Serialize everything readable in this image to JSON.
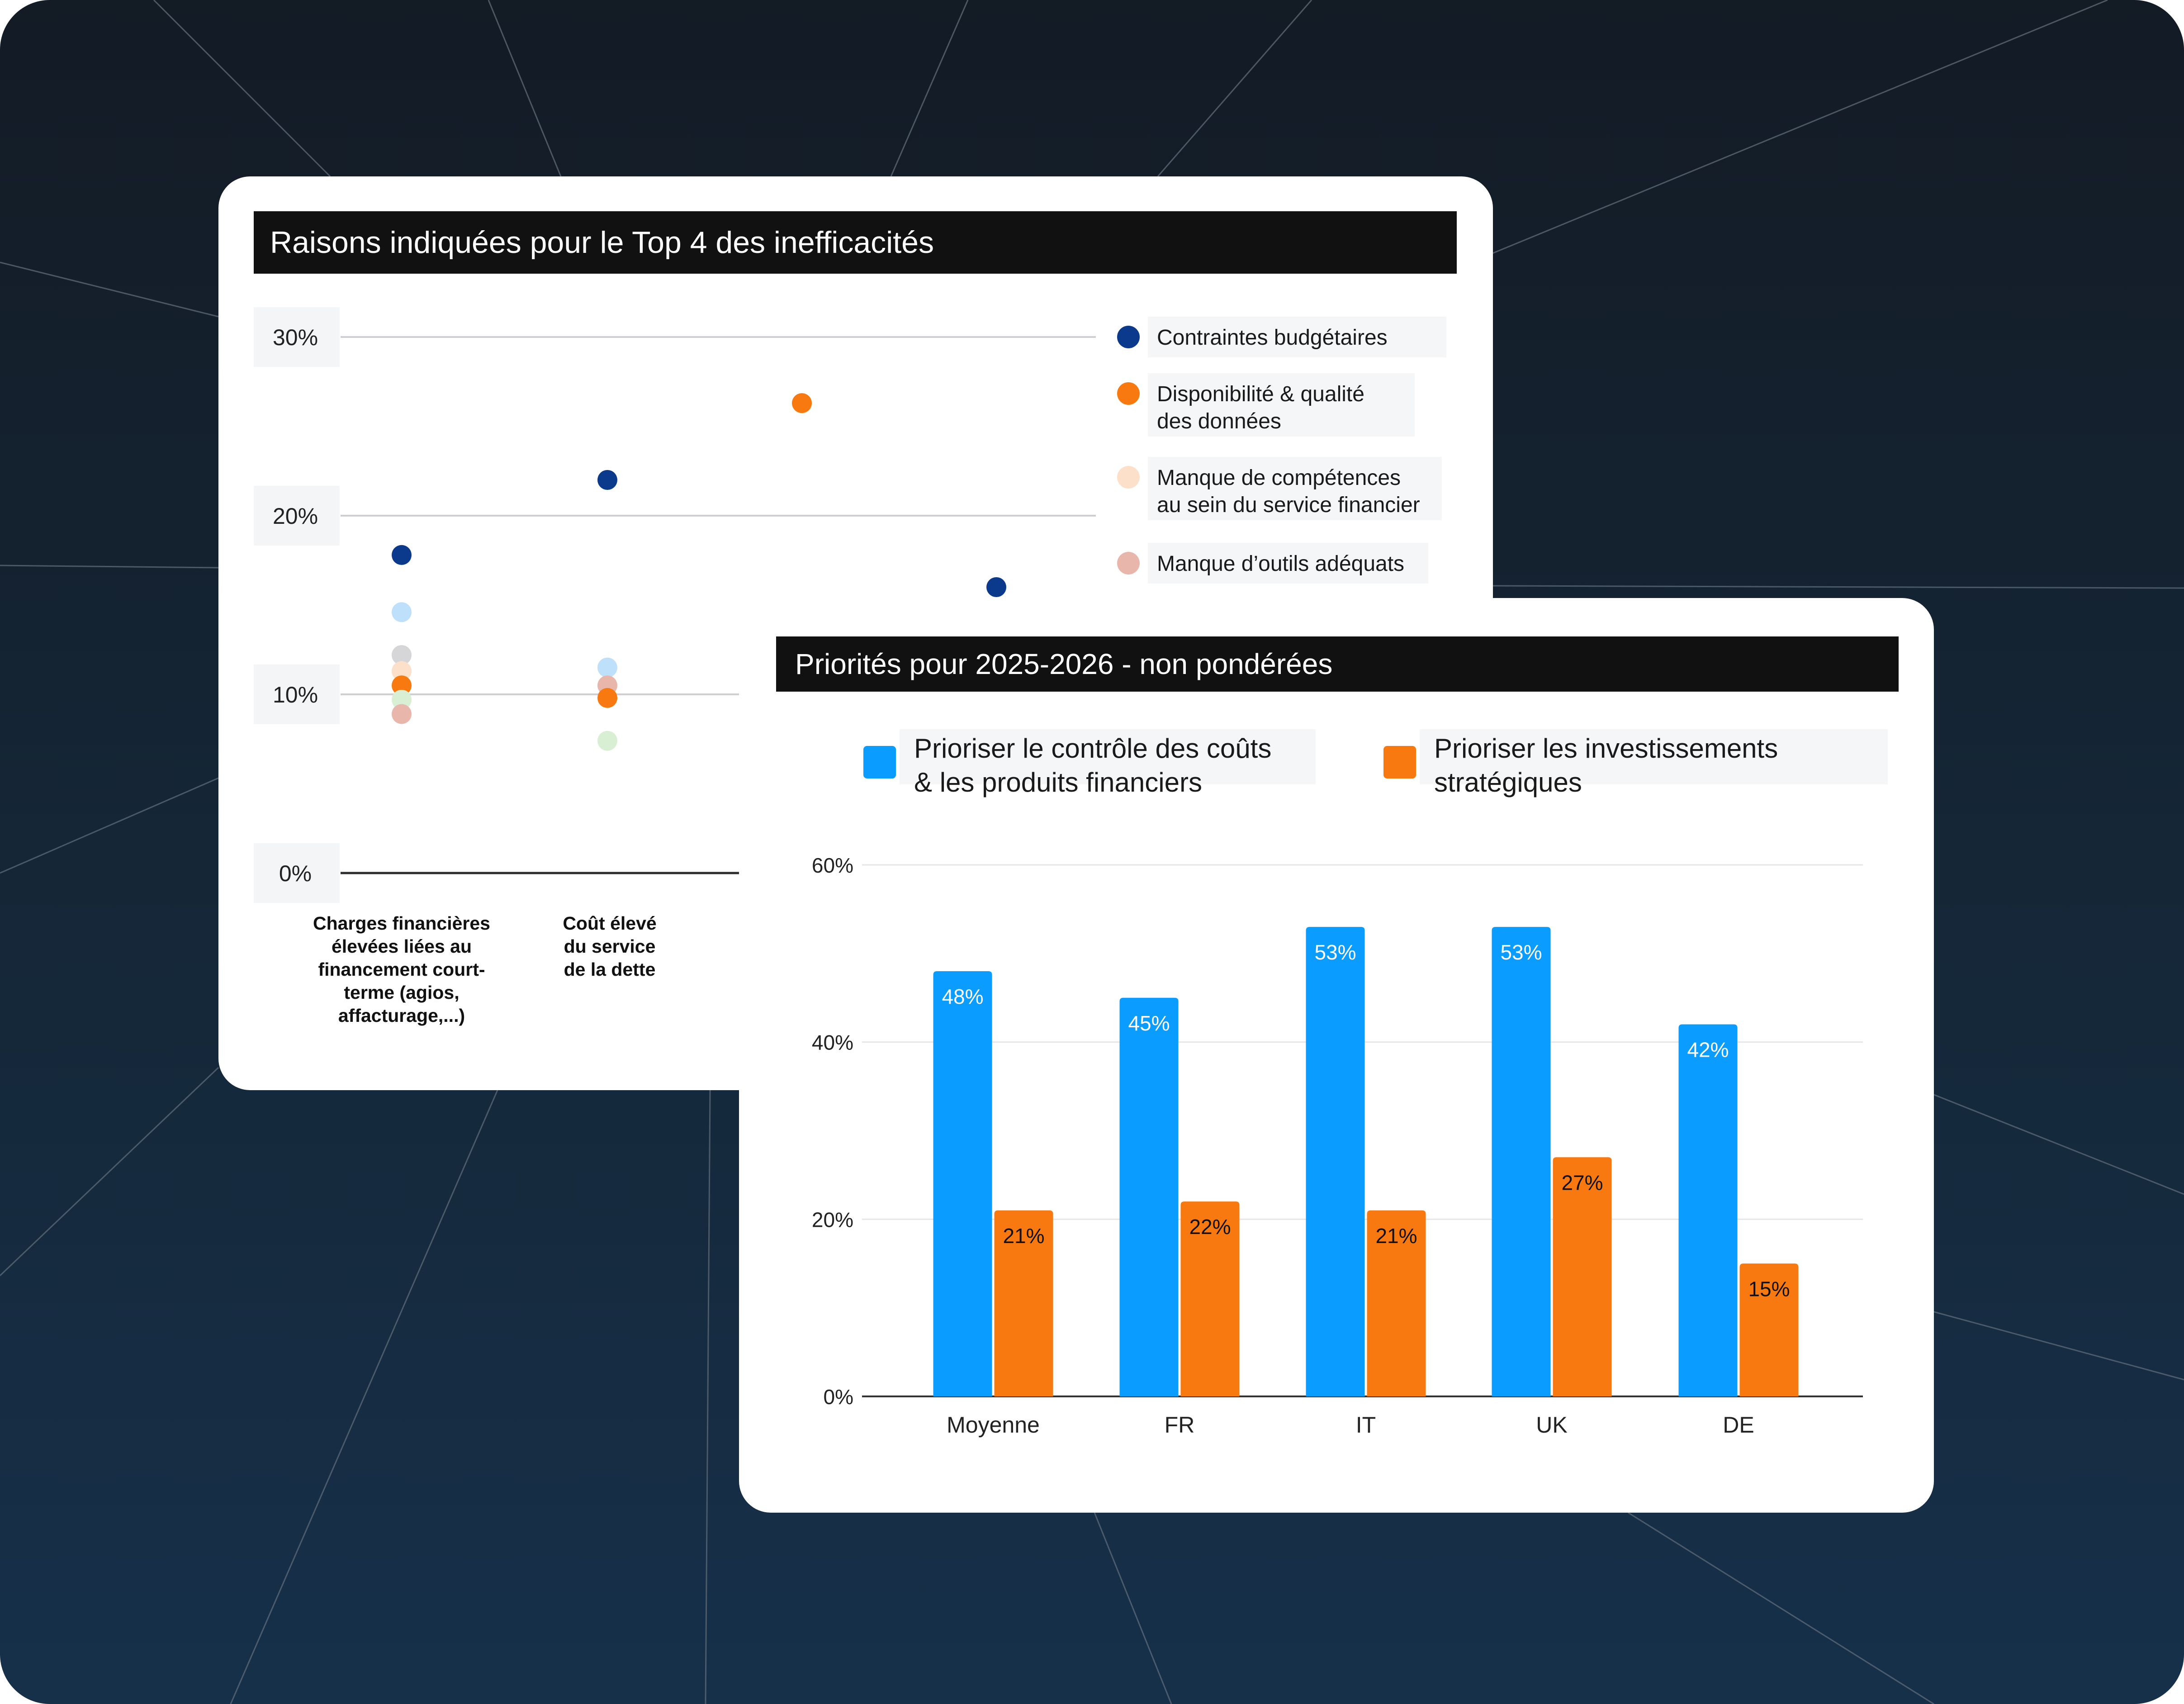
{
  "colors": {
    "navy": "#0b3a8c",
    "orange": "#f7790f",
    "peach": "#fde0c9",
    "pink": "#e8b6ab",
    "lightblue": "#bfe0fb",
    "gray": "#d6d6d9",
    "mint": "#d9efd4",
    "blue_bar": "#0b9cff",
    "orange_bar": "#f7790f"
  },
  "chart_data": [
    {
      "type": "scatter",
      "title": "Raisons indiquées pour le Top 4 des inefficacités",
      "ylim": [
        0,
        30
      ],
      "yticks": [
        "0%",
        "10%",
        "20%",
        "30%"
      ],
      "categories": [
        "Charges financières élevées liées au financement court-terme (agios, affacturage,...)",
        "Coût élevé du service de la dette"
      ],
      "category_lines": [
        [
          "Charges financières",
          "élevées liées au",
          "financement court-",
          "terme (agios,",
          "affacturage,...)"
        ],
        [
          "Coût élevé",
          "du service",
          "de la dette"
        ]
      ],
      "legend": [
        {
          "label_lines": [
            "Contraintes budgétaires"
          ],
          "color": "#0b3a8c"
        },
        {
          "label_lines": [
            "Disponibilité & qualité",
            "des données"
          ],
          "color": "#f7790f"
        },
        {
          "label_lines": [
            "Manque de compétences",
            "au sein du service financier"
          ],
          "color": "#fde0c9"
        },
        {
          "label_lines": [
            "Manque d’outils adéquats"
          ],
          "color": "#e8b6ab"
        }
      ],
      "points": [
        {
          "x": 0,
          "y": 17.8,
          "color": "#0b3a8c"
        },
        {
          "x": 0,
          "y": 14.6,
          "color": "#bfe0fb"
        },
        {
          "x": 0,
          "y": 12.2,
          "color": "#d6d6d9"
        },
        {
          "x": 0,
          "y": 11.3,
          "color": "#fde0c9"
        },
        {
          "x": 0,
          "y": 10.5,
          "color": "#f7790f"
        },
        {
          "x": 0,
          "y": 9.7,
          "color": "#d9efd4"
        },
        {
          "x": 0,
          "y": 8.9,
          "color": "#e8b6ab"
        },
        {
          "x": 1,
          "y": 22.0,
          "color": "#0b3a8c"
        },
        {
          "x": 1,
          "y": 11.5,
          "color": "#bfe0fb"
        },
        {
          "x": 1,
          "y": 10.5,
          "color": "#e8b6ab"
        },
        {
          "x": 1,
          "y": 9.8,
          "color": "#f7790f"
        },
        {
          "x": 1,
          "y": 7.4,
          "color": "#d9efd4"
        },
        {
          "x": 2,
          "y": 26.3,
          "color": "#f7790f"
        },
        {
          "x": 3,
          "y": 16.0,
          "color": "#0b3a8c"
        }
      ]
    },
    {
      "type": "bar",
      "title": "Priorités pour 2025-2026 - non pondérées",
      "categories": [
        "Moyenne",
        "FR",
        "IT",
        "UK",
        "DE"
      ],
      "ylim": [
        0,
        60
      ],
      "yticks": [
        "0%",
        "20%",
        "40%",
        "60%"
      ],
      "series": [
        {
          "name": "Prioriser le contrôle des coûts & les produits financiers",
          "name_lines": [
            "Prioriser le contrôle des coûts",
            "& les produits financiers"
          ],
          "color": "#0b9cff",
          "values": [
            48,
            45,
            53,
            53,
            42
          ],
          "labels": [
            "48%",
            "45%",
            "53%",
            "53%",
            "42%"
          ]
        },
        {
          "name": "Prioriser les investissements stratégiques",
          "name_lines": [
            "Prioriser les investissements",
            "stratégiques"
          ],
          "color": "#f7790f",
          "values": [
            21,
            22,
            21,
            27,
            15
          ],
          "labels": [
            "21%",
            "22%",
            "21%",
            "27%",
            "15%"
          ]
        }
      ]
    }
  ]
}
